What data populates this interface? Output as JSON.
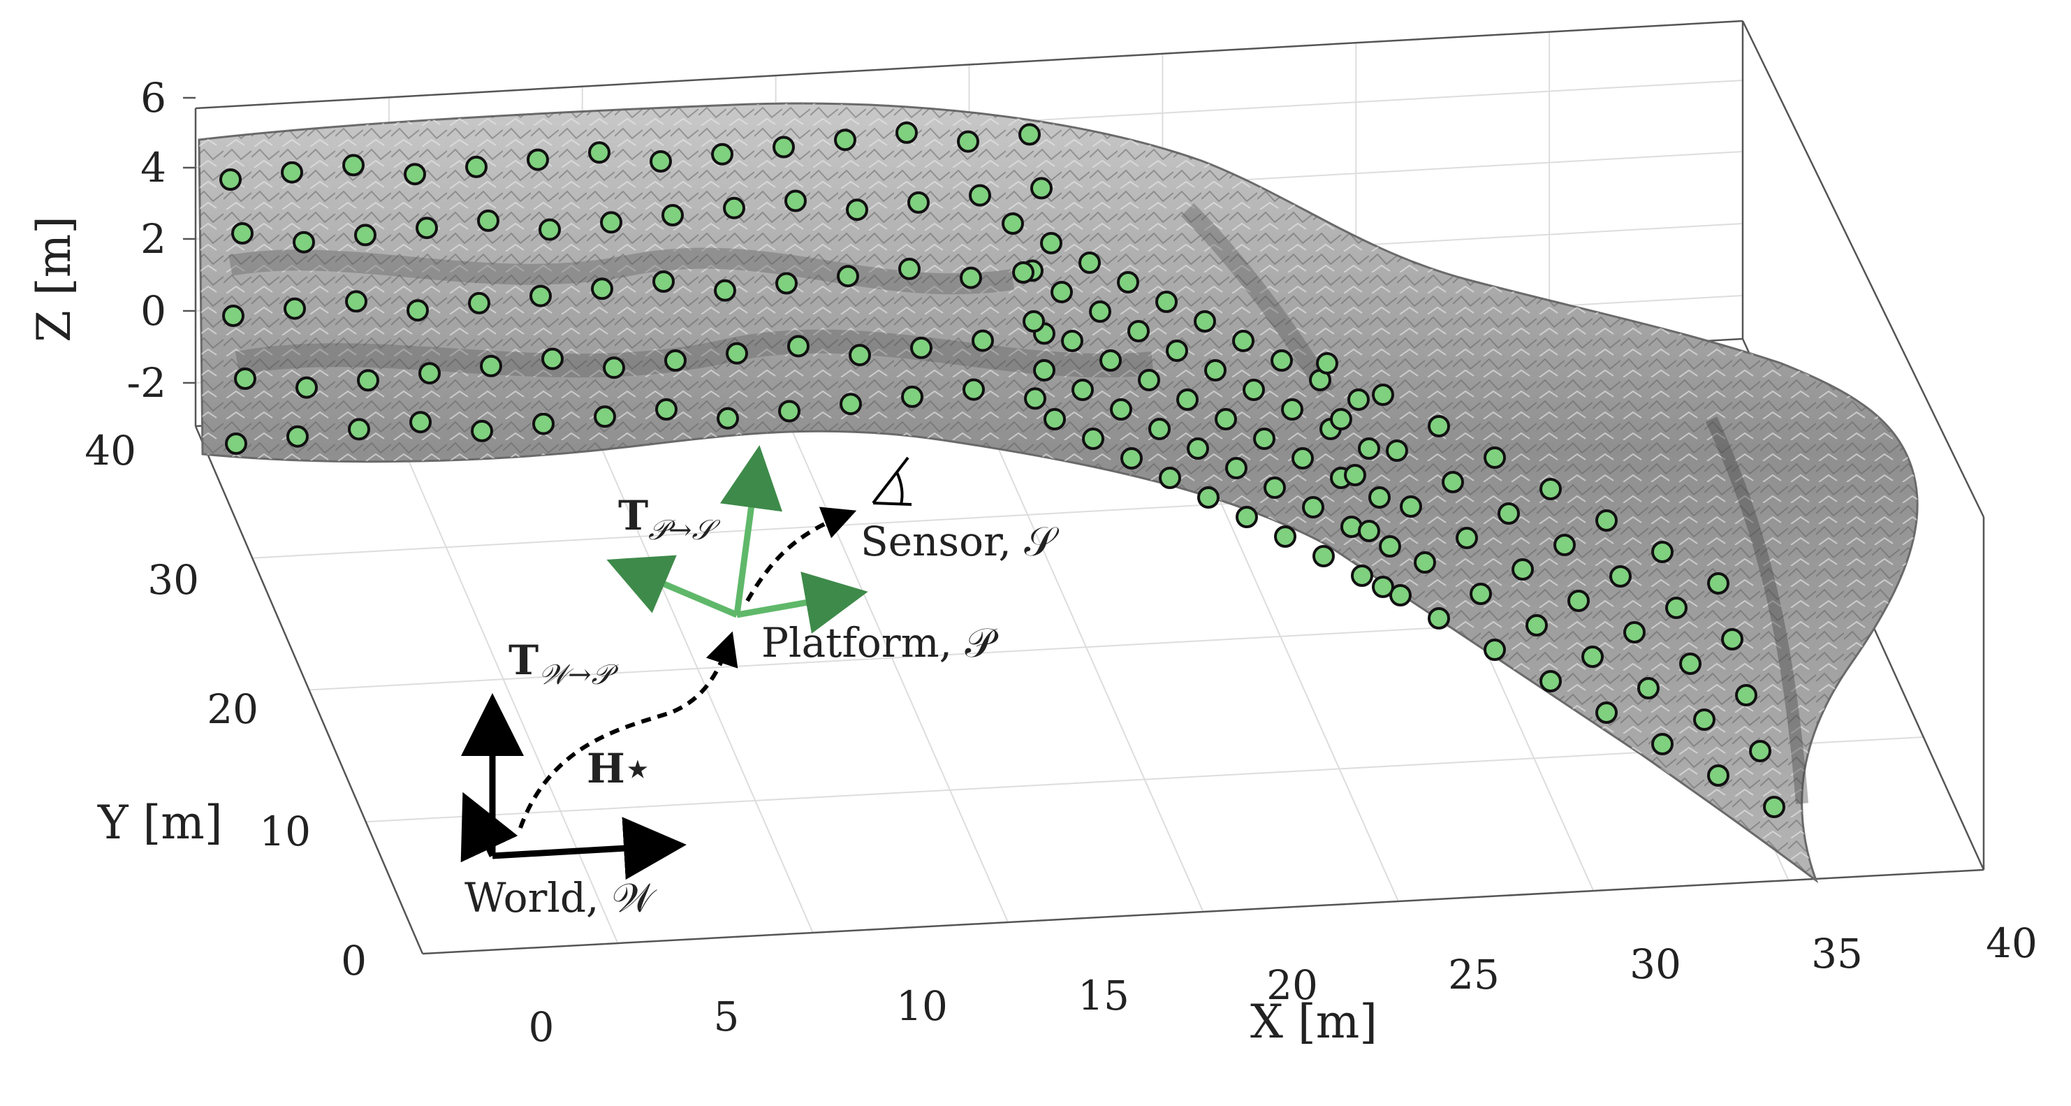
{
  "axes": {
    "x": {
      "label": "X [m]",
      "ticks": [
        "0",
        "5",
        "10",
        "15",
        "20",
        "25",
        "30",
        "35",
        "40"
      ]
    },
    "y": {
      "label": "Y [m]",
      "ticks": [
        "0",
        "10",
        "20",
        "30",
        "40"
      ]
    },
    "z": {
      "label": "Z [m]",
      "ticks": [
        "-2",
        "0",
        "2",
        "4",
        "6"
      ]
    }
  },
  "frames": {
    "world": "World, 𝒲",
    "platform": "Platform, 𝒫",
    "sensor": "Sensor, 𝒮"
  },
  "transforms": {
    "world_to_platform": {
      "symbol": "T",
      "subscript": "𝒲→𝒫"
    },
    "platform_to_sensor": {
      "symbol": "T",
      "subscript": "𝒫→𝒮"
    },
    "trajectory": "H⋆"
  },
  "colors": {
    "platform_frame": "#5fb86a",
    "target_fill": "#7fd07f",
    "surface": "#8a8a8a",
    "grid": "#dddddd"
  }
}
